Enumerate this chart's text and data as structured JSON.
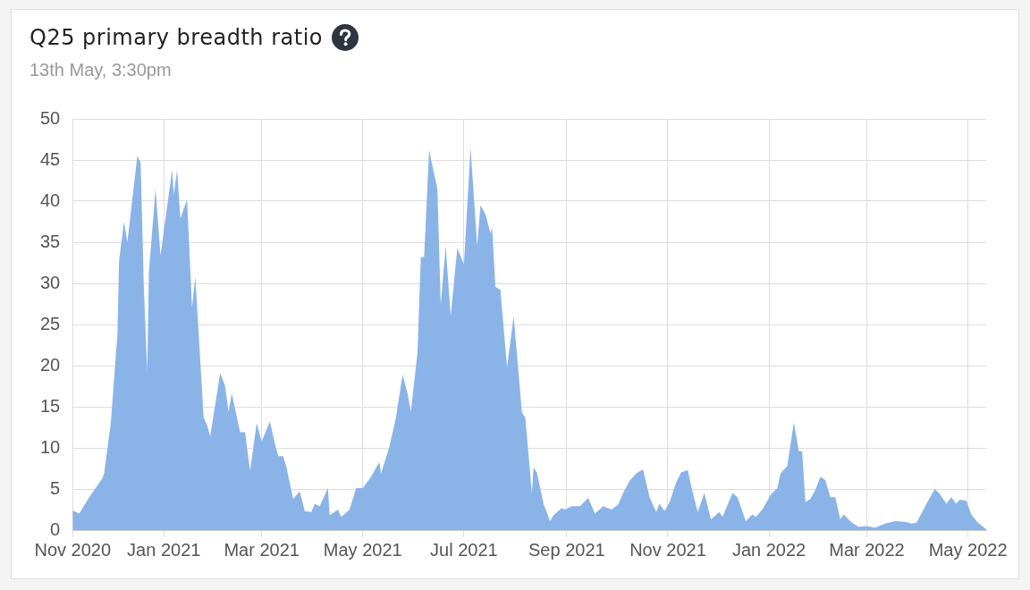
{
  "chart_data": {
    "type": "area",
    "title": "Q25 primary breadth ratio",
    "subtitle": "13th May, 3:30pm",
    "x": [
      "2020-11-07",
      "2020-11-11",
      "2020-11-17",
      "2020-11-25",
      "2020-11-26",
      "2020-11-30",
      "2020-12-04",
      "2020-12-05",
      "2020-12-08",
      "2020-12-10",
      "2020-12-16",
      "2020-12-18",
      "2020-12-20",
      "2020-12-22",
      "2020-12-23",
      "2020-12-27",
      "2020-12-30",
      "2021-01-02",
      "2021-01-06",
      "2021-01-07",
      "2021-01-09",
      "2021-01-11",
      "2021-01-15",
      "2021-01-18",
      "2021-01-20",
      "2021-01-25",
      "2021-01-27",
      "2021-01-29",
      "2021-02-04",
      "2021-02-07",
      "2021-02-09",
      "2021-02-11",
      "2021-02-16",
      "2021-02-19",
      "2021-02-22",
      "2021-02-26",
      "2021-03-01",
      "2021-03-06",
      "2021-03-09",
      "2021-03-11",
      "2021-03-14",
      "2021-03-16",
      "2021-03-20",
      "2021-03-24",
      "2021-03-27",
      "2021-03-31",
      "2021-04-02",
      "2021-04-05",
      "2021-04-10",
      "2021-04-11",
      "2021-04-16",
      "2021-04-18",
      "2021-04-23",
      "2021-04-27",
      "2021-05-01",
      "2021-05-06",
      "2021-05-11",
      "2021-05-12",
      "2021-05-17",
      "2021-05-21",
      "2021-05-25",
      "2021-05-28",
      "2021-05-30",
      "2021-06-03",
      "2021-06-05",
      "2021-06-07",
      "2021-06-10",
      "2021-06-15",
      "2021-06-17",
      "2021-06-20",
      "2021-06-23",
      "2021-06-27",
      "2021-07-01",
      "2021-07-05",
      "2021-07-09",
      "2021-07-11",
      "2021-07-14",
      "2021-07-17",
      "2021-07-18",
      "2021-07-20",
      "2021-07-23",
      "2021-07-27",
      "2021-07-31",
      "2021-08-05",
      "2021-08-07",
      "2021-08-11",
      "2021-08-12",
      "2021-08-14",
      "2021-08-18",
      "2021-08-22",
      "2021-08-24",
      "2021-08-29",
      "2021-08-31",
      "2021-09-04",
      "2021-09-09",
      "2021-09-14",
      "2021-09-18",
      "2021-09-23",
      "2021-09-28",
      "2021-10-02",
      "2021-10-05",
      "2021-10-09",
      "2021-10-13",
      "2021-10-17",
      "2021-10-21",
      "2021-10-25",
      "2021-10-27",
      "2021-10-30",
      "2021-11-02",
      "2021-11-06",
      "2021-11-09",
      "2021-11-13",
      "2021-11-15",
      "2021-11-19",
      "2021-11-23",
      "2021-11-27",
      "2021-12-02",
      "2021-12-04",
      "2021-12-10",
      "2021-12-13",
      "2021-12-18",
      "2021-12-22",
      "2021-12-24",
      "2021-12-28",
      "2022-01-02",
      "2022-01-06",
      "2022-01-08",
      "2022-01-12",
      "2022-01-16",
      "2022-01-19",
      "2022-01-21",
      "2022-01-23",
      "2022-01-26",
      "2022-01-29",
      "2022-02-01",
      "2022-02-04",
      "2022-02-07",
      "2022-02-10",
      "2022-02-13",
      "2022-02-15",
      "2022-02-20",
      "2022-02-24",
      "2022-03-01",
      "2022-03-06",
      "2022-03-12",
      "2022-03-18",
      "2022-03-24",
      "2022-03-28",
      "2022-03-31",
      "2022-04-06",
      "2022-04-11",
      "2022-04-14",
      "2022-04-18",
      "2022-04-21",
      "2022-04-24",
      "2022-04-26",
      "2022-04-30",
      "2022-05-03",
      "2022-05-07",
      "2022-05-12"
    ],
    "series": [
      {
        "color": "#8ab4e8",
        "values": [
          2.4,
          2.0,
          4.0,
          6.3,
          6.9,
          13.0,
          23.8,
          32.8,
          37.5,
          35.0,
          45.5,
          44.7,
          29.2,
          19.2,
          31.4,
          41.5,
          33.4,
          37.9,
          43.8,
          40.8,
          43.8,
          37.9,
          40.2,
          27.1,
          30.8,
          13.7,
          12.8,
          11.4,
          19.1,
          17.5,
          14.4,
          16.6,
          11.9,
          11.9,
          7.2,
          13.0,
          10.8,
          13.2,
          10.5,
          9.0,
          9.0,
          7.6,
          3.8,
          4.7,
          2.3,
          2.2,
          3.2,
          2.9,
          5.1,
          1.8,
          2.5,
          1.6,
          2.5,
          5.1,
          5.1,
          6.5,
          8.3,
          6.9,
          10.1,
          13.7,
          18.9,
          16.6,
          14.4,
          21.6,
          33.2,
          33.2,
          46.2,
          41.5,
          27.4,
          34.6,
          26.0,
          34.3,
          32.3,
          46.5,
          34.6,
          39.5,
          38.4,
          36.1,
          36.8,
          29.6,
          29.2,
          19.8,
          26.0,
          14.3,
          13.7,
          4.5,
          7.6,
          7.0,
          3.2,
          1.1,
          1.8,
          2.7,
          2.5,
          2.9,
          2.9,
          3.9,
          2.0,
          2.9,
          2.5,
          3.1,
          4.5,
          6.0,
          6.9,
          7.4,
          4.0,
          2.2,
          3.2,
          2.3,
          3.4,
          5.8,
          7.0,
          7.3,
          5.4,
          2.2,
          4.5,
          1.3,
          2.2,
          1.6,
          4.5,
          4.0,
          1.1,
          1.9,
          1.6,
          2.5,
          4.3,
          5.1,
          6.9,
          7.8,
          13.1,
          9.6,
          9.6,
          3.4,
          3.8,
          4.9,
          6.5,
          6.1,
          4.0,
          4.0,
          1.3,
          1.9,
          0.9,
          0.4,
          0.5,
          0.3,
          0.8,
          1.1,
          1.0,
          0.8,
          0.9,
          3.2,
          5.0,
          4.4,
          3.2,
          4.0,
          3.2,
          3.7,
          3.6,
          1.9,
          0.9,
          0.1
        ]
      }
    ],
    "xlim": [
      "2020-11-07",
      "2022-05-12"
    ],
    "xticks": [
      {
        "value": "2020-11-07",
        "label": "Nov 2020"
      },
      {
        "value": "2021-01-01",
        "label": "Jan 2021"
      },
      {
        "value": "2021-03-01",
        "label": "Mar 2021"
      },
      {
        "value": "2021-05-01",
        "label": "May 2021"
      },
      {
        "value": "2021-07-01",
        "label": "Jul 2021"
      },
      {
        "value": "2021-09-01",
        "label": "Sep 2021"
      },
      {
        "value": "2021-11-01",
        "label": "Nov 2021"
      },
      {
        "value": "2022-01-01",
        "label": "Jan 2022"
      },
      {
        "value": "2022-03-01",
        "label": "Mar 2022"
      },
      {
        "value": "2022-05-01",
        "label": "May 2022"
      }
    ],
    "ylim": [
      0,
      50
    ],
    "yticks": [
      0,
      5,
      10,
      15,
      20,
      25,
      30,
      35,
      40,
      45,
      50
    ],
    "grid": true,
    "legend": false,
    "marker": "none"
  }
}
